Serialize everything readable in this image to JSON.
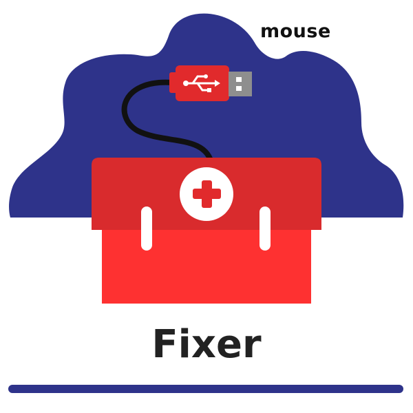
{
  "header": {
    "tag": "mouse"
  },
  "main": {
    "title": "Fixer"
  },
  "icons": {
    "cloud": "blob-background",
    "cable": "usb-cable-icon",
    "usb_symbol": "usb-symbol-icon",
    "box": "toolbox-icon",
    "badge": "medical-cross-icon"
  },
  "colors": {
    "blob": "#2e338a",
    "toolbox_lid": "#d92b2d",
    "toolbox_body": "#fe3131",
    "usb_plug": "#e12a2c",
    "usb_metal": "#8e8e8e",
    "accent_line": "#2e338a"
  }
}
